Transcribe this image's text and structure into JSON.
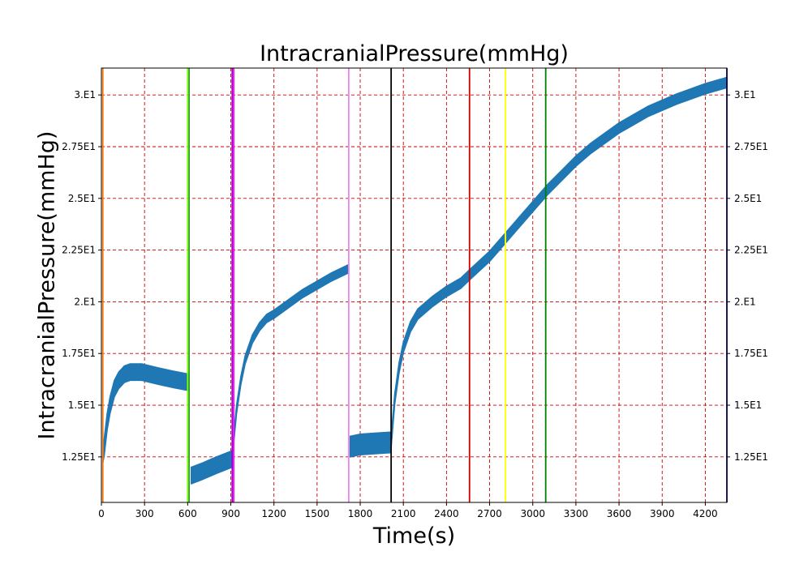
{
  "chart_data": {
    "type": "line",
    "title": "IntracranialPressure(mmHg)",
    "xlabel": "Time(s)",
    "ylabel": "IntracranialPressure(mmHg)",
    "xlim": [
      0,
      4350
    ],
    "ylim": [
      10.3,
      31.3
    ],
    "grid": true,
    "grid_color": "#cc0000",
    "series_color": "#1f77b4",
    "x_ticks": [
      0,
      300,
      600,
      900,
      1200,
      1500,
      1800,
      2100,
      2400,
      2700,
      3000,
      3300,
      3600,
      3900,
      4200
    ],
    "x_tick_labels": [
      "0",
      "300",
      "600",
      "900",
      "1200",
      "1500",
      "1800",
      "2100",
      "2400",
      "2700",
      "3000",
      "3300",
      "3600",
      "3900",
      "4200"
    ],
    "y_ticks": [
      12.5,
      15,
      17.5,
      20,
      22.5,
      25,
      27.5,
      30
    ],
    "y_tick_labels": [
      "1.25E1",
      "1.5E1",
      "1.75E1",
      "2.E1",
      "2.25E1",
      "2.5E1",
      "2.75E1",
      "3.E1"
    ],
    "series": [
      {
        "segments": [
          {
            "band": 0.8,
            "points": [
              [
                10,
                12.6
              ],
              [
                20,
                13.0
              ],
              [
                40,
                14.2
              ],
              [
                60,
                15.0
              ],
              [
                90,
                15.8
              ],
              [
                120,
                16.2
              ],
              [
                160,
                16.5
              ],
              [
                200,
                16.6
              ],
              [
                280,
                16.6
              ],
              [
                400,
                16.4
              ],
              [
                500,
                16.25
              ],
              [
                610,
                16.1
              ]
            ]
          },
          {
            "band": 0.8,
            "points": [
              [
                625,
                11.6
              ],
              [
                700,
                11.8
              ],
              [
                800,
                12.1
              ],
              [
                910,
                12.4
              ]
            ]
          },
          {
            "band": 0.4,
            "points": [
              [
                915,
                13.0
              ],
              [
                940,
                14.8
              ],
              [
                970,
                16.2
              ],
              [
                1000,
                17.2
              ],
              [
                1050,
                18.2
              ],
              [
                1100,
                18.8
              ],
              [
                1150,
                19.2
              ],
              [
                1200,
                19.4
              ],
              [
                1300,
                19.9
              ],
              [
                1400,
                20.4
              ],
              [
                1500,
                20.8
              ],
              [
                1600,
                21.2
              ],
              [
                1720,
                21.6
              ]
            ]
          },
          {
            "band": 1.0,
            "points": [
              [
                1730,
                13.0
              ],
              [
                1800,
                13.1
              ],
              [
                1900,
                13.15
              ],
              [
                2010,
                13.2
              ]
            ]
          },
          {
            "band": 0.5,
            "points": [
              [
                2015,
                13.2
              ],
              [
                2040,
                15.3
              ],
              [
                2070,
                16.8
              ],
              [
                2100,
                17.8
              ],
              [
                2150,
                18.8
              ],
              [
                2200,
                19.4
              ],
              [
                2300,
                20.0
              ],
              [
                2400,
                20.5
              ],
              [
                2500,
                20.9
              ],
              [
                2560,
                21.3
              ],
              [
                2700,
                22.2
              ],
              [
                2800,
                23.0
              ],
              [
                2900,
                23.8
              ],
              [
                3000,
                24.6
              ],
              [
                3100,
                25.4
              ],
              [
                3200,
                26.1
              ],
              [
                3300,
                26.8
              ],
              [
                3400,
                27.4
              ],
              [
                3500,
                27.9
              ],
              [
                3600,
                28.4
              ],
              [
                3700,
                28.8
              ],
              [
                3800,
                29.2
              ],
              [
                3900,
                29.5
              ],
              [
                4000,
                29.8
              ],
              [
                4100,
                30.05
              ],
              [
                4200,
                30.3
              ],
              [
                4350,
                30.6
              ]
            ]
          }
        ]
      }
    ],
    "event_lines": [
      {
        "x": 10,
        "color": "#ff7f0e"
      },
      {
        "x": 600,
        "color": "#7fff00"
      },
      {
        "x": 610,
        "color": "#2ca02c"
      },
      {
        "x": 910,
        "color": "#9400d3"
      },
      {
        "x": 920,
        "color": "#ff00ff"
      },
      {
        "x": 1720,
        "color": "#ee82ee"
      },
      {
        "x": 2015,
        "color": "#000000"
      },
      {
        "x": 2560,
        "color": "#cc0000"
      },
      {
        "x": 2810,
        "color": "#ffff00"
      },
      {
        "x": 3090,
        "color": "#008000"
      },
      {
        "x": 4350,
        "color": "#00008b"
      }
    ]
  }
}
